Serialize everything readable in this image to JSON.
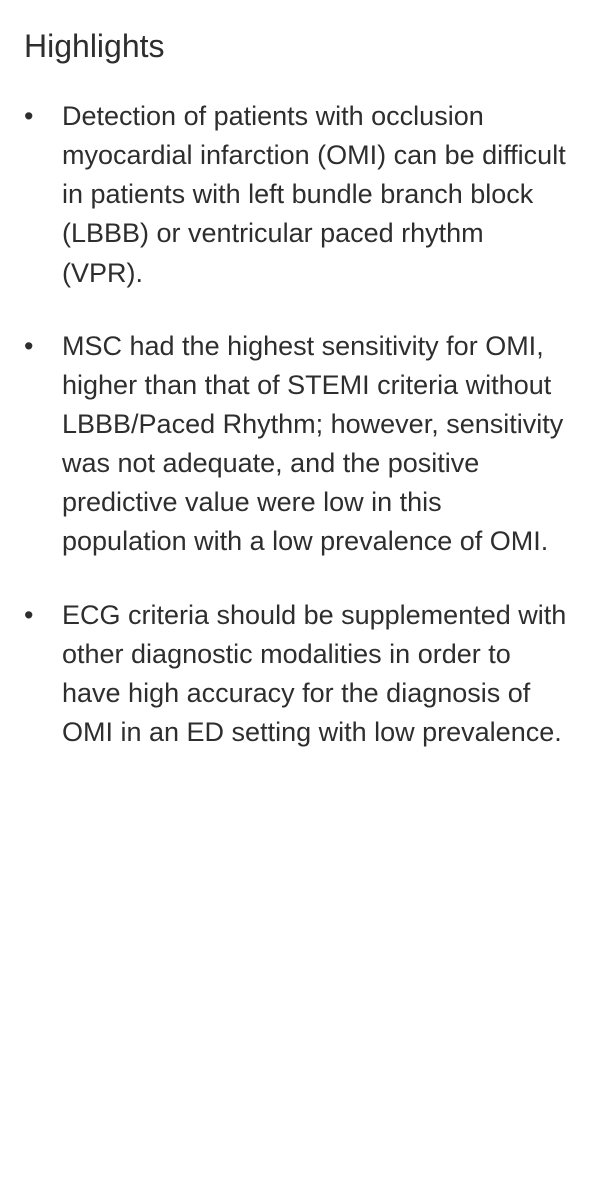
{
  "heading": "Highlights",
  "bullets": [
    {
      "text": "Detection of patients with occlusion myocardial infarction (OMI) can be difficult in patients with left bundle branch block (LBBB) or ventricular paced rhythm (VPR)."
    },
    {
      "text": "MSC had the highest sensitivity for OMI, higher than that of STEMI criteria without LBBB/Paced Rhythm; however, sensitivity was not adequate, and the positive predictive value were low in this population with a low prevalence of OMI."
    },
    {
      "text": "ECG criteria should be supplemented with other diagnostic modalities in order to have high accuracy for the diagnosis of OMI in an ED setting with low prevalence."
    }
  ],
  "styling": {
    "background_color": "#ffffff",
    "text_color": "#2e2e2e",
    "heading_fontsize": 32,
    "body_fontsize": 27,
    "line_height": 1.45,
    "bullet_marker": "•",
    "font_family": "sans-serif"
  }
}
